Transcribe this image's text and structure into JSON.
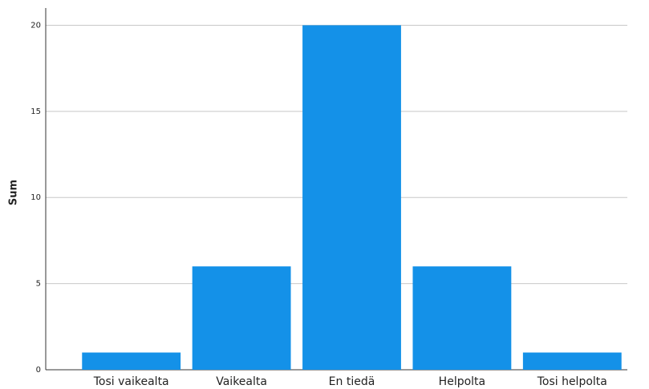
{
  "chart_data": {
    "type": "bar",
    "y_label": "Sum",
    "categories": [
      "Tosi vaikealta",
      "Vaikealta",
      "En tiedä",
      "Helpolta",
      "Tosi helpolta"
    ],
    "values": [
      1,
      6,
      20,
      6,
      1
    ],
    "color": "#1491e8",
    "ylim": [
      0,
      21
    ],
    "yticks": [
      0,
      5,
      10,
      15,
      20
    ],
    "grid": true
  }
}
